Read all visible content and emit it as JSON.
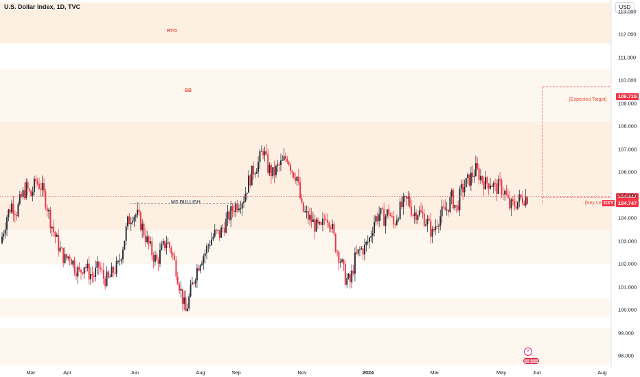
{
  "header": {
    "title": "U.S. Dollar Index, 1D, TVC"
  },
  "currency_button": {
    "label": "USD"
  },
  "colors": {
    "up": "#2a2e39",
    "down": "#f23645",
    "zone": "#fdf0e3",
    "zone_light": "#fef7ef",
    "accent": "#f23645"
  },
  "icons": [
    "lightning-event-icon",
    "us-flag-icon"
  ],
  "annotations": {
    "rto": "RTO",
    "bb": "BB",
    "ms_bullish": "MS BULLISH",
    "expected_target": "[Expected Target]",
    "key_level": "[Key Le"
  },
  "price_tags": {
    "target": "109.715",
    "key": "104.947",
    "last": "104.747",
    "symbol": "DXY"
  },
  "chart_data": {
    "type": "candlestick",
    "title": "U.S. Dollar Index, 1D, TVC",
    "ylim": [
      97.5,
      113.5
    ],
    "y_ticks": [
      "113.000",
      "112.000",
      "111.000",
      "110.000",
      "109.000",
      "108.000",
      "107.000",
      "106.000",
      "105.000",
      "104.000",
      "103.000",
      "102.000",
      "101.000",
      "100.000",
      "99.000",
      "98.000"
    ],
    "x_ticks": [
      {
        "label": "Mar",
        "bold": false
      },
      {
        "label": "Apr",
        "bold": false
      },
      {
        "label": "Jun",
        "bold": false
      },
      {
        "label": "Aug",
        "bold": false
      },
      {
        "label": "Sep",
        "bold": false
      },
      {
        "label": "Nov",
        "bold": false
      },
      {
        "label": "2024",
        "bold": true
      },
      {
        "label": "Mar",
        "bold": false
      },
      {
        "label": "May",
        "bold": false
      },
      {
        "label": "Jun",
        "bold": false
      },
      {
        "label": "Aug",
        "bold": false
      }
    ],
    "series_close": [
      103.2,
      104.1,
      104.6,
      104.3,
      104.9,
      105.3,
      105.0,
      105.6,
      105.4,
      104.8,
      103.9,
      103.2,
      102.6,
      102.2,
      102.4,
      101.9,
      101.6,
      102.0,
      101.6,
      101.5,
      101.9,
      101.4,
      101.3,
      101.7,
      101.9,
      102.8,
      103.8,
      104.2,
      104.1,
      103.6,
      103.0,
      102.5,
      102.1,
      102.6,
      103.0,
      102.6,
      101.8,
      100.8,
      99.9,
      100.8,
      101.6,
      102.2,
      102.5,
      103.0,
      103.3,
      103.3,
      103.7,
      104.1,
      104.5,
      104.7,
      104.9,
      105.6,
      106.1,
      106.4,
      107.0,
      106.2,
      105.9,
      106.2,
      106.4,
      106.7,
      106.1,
      105.8,
      104.4,
      104.1,
      103.9,
      103.6,
      103.5,
      104.2,
      103.8,
      102.8,
      102.2,
      101.4,
      101.2,
      102.2,
      102.6,
      102.7,
      103.1,
      103.9,
      104.2,
      104.0,
      104.3,
      103.7,
      104.3,
      104.6,
      104.8,
      104.2,
      104.3,
      104.1,
      103.8,
      103.3,
      103.9,
      104.2,
      104.4,
      104.9,
      104.4,
      105.2,
      105.5,
      105.8,
      106.1,
      105.8,
      105.5,
      105.6,
      105.3,
      105.4,
      105.1,
      104.5,
      104.6,
      104.8,
      104.9
    ],
    "expected_target": 109.715,
    "key_level": 104.947,
    "last_price": 104.747,
    "zones": [
      {
        "label": "RTO",
        "from": 111.6,
        "to": 113.3
      },
      {
        "label": "BB",
        "from": 108.2,
        "to": 110.5
      }
    ]
  }
}
